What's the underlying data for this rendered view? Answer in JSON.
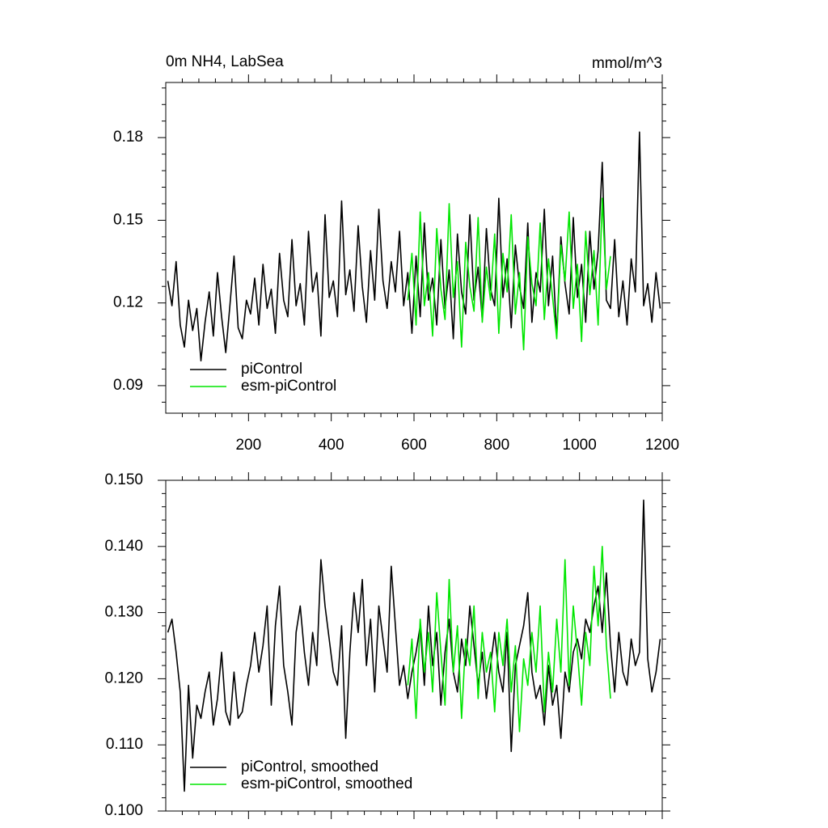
{
  "chart_data": [
    {
      "type": "line",
      "title": "0m NH4, LabSea",
      "right_title": "mmol/m^3",
      "xlim": [
        0,
        1200
      ],
      "xticks": [
        200,
        400,
        600,
        800,
        1000,
        1200
      ],
      "ylim": [
        0.08,
        0.2
      ],
      "yticks": [
        0.09,
        0.12,
        0.15,
        0.18
      ],
      "legend": "lower left",
      "series": [
        {
          "name": "piControl",
          "color": "#000000",
          "x": [
            5,
            15,
            25,
            35,
            45,
            55,
            65,
            75,
            85,
            95,
            105,
            115,
            125,
            135,
            145,
            155,
            165,
            175,
            185,
            195,
            205,
            215,
            225,
            235,
            245,
            255,
            265,
            275,
            285,
            295,
            305,
            315,
            325,
            335,
            345,
            355,
            365,
            375,
            385,
            395,
            405,
            415,
            425,
            435,
            445,
            455,
            465,
            475,
            485,
            495,
            505,
            515,
            525,
            535,
            545,
            555,
            565,
            575,
            585,
            595,
            605,
            615,
            625,
            635,
            645,
            655,
            665,
            675,
            685,
            695,
            705,
            715,
            725,
            735,
            745,
            755,
            765,
            775,
            785,
            795,
            805,
            815,
            825,
            835,
            845,
            855,
            865,
            875,
            885,
            895,
            905,
            915,
            925,
            935,
            945,
            955,
            965,
            975,
            985,
            995,
            1005,
            1015,
            1025,
            1035,
            1045,
            1055,
            1065,
            1075,
            1085,
            1095,
            1105,
            1115,
            1125,
            1135,
            1145,
            1155,
            1165,
            1175,
            1185,
            1195
          ],
          "values": [
            0.128,
            0.119,
            0.135,
            0.112,
            0.104,
            0.121,
            0.11,
            0.118,
            0.099,
            0.113,
            0.124,
            0.108,
            0.131,
            0.115,
            0.102,
            0.119,
            0.137,
            0.111,
            0.107,
            0.121,
            0.116,
            0.129,
            0.112,
            0.134,
            0.118,
            0.125,
            0.109,
            0.138,
            0.121,
            0.115,
            0.143,
            0.119,
            0.127,
            0.112,
            0.146,
            0.124,
            0.131,
            0.108,
            0.152,
            0.122,
            0.128,
            0.115,
            0.157,
            0.123,
            0.132,
            0.117,
            0.148,
            0.126,
            0.113,
            0.139,
            0.121,
            0.154,
            0.128,
            0.118,
            0.135,
            0.124,
            0.146,
            0.119,
            0.131,
            0.109,
            0.137,
            0.115,
            0.149,
            0.121,
            0.129,
            0.112,
            0.143,
            0.118,
            0.132,
            0.107,
            0.145,
            0.124,
            0.116,
            0.152,
            0.121,
            0.133,
            0.114,
            0.147,
            0.125,
            0.119,
            0.158,
            0.122,
            0.136,
            0.111,
            0.141,
            0.126,
            0.118,
            0.149,
            0.113,
            0.131,
            0.124,
            0.154,
            0.119,
            0.137,
            0.108,
            0.144,
            0.127,
            0.116,
            0.151,
            0.122,
            0.134,
            0.113,
            0.146,
            0.125,
            0.139,
            0.171,
            0.121,
            0.118,
            0.143,
            0.115,
            0.128,
            0.112,
            0.136,
            0.124,
            0.182,
            0.119,
            0.127,
            0.113,
            0.131,
            0.118
          ]
        },
        {
          "name": "esm-piControl",
          "color": "#00e600",
          "x": [
            585,
            595,
            605,
            615,
            625,
            635,
            645,
            655,
            665,
            675,
            685,
            695,
            705,
            715,
            725,
            735,
            745,
            755,
            765,
            775,
            785,
            795,
            805,
            815,
            825,
            835,
            845,
            855,
            865,
            875,
            885,
            895,
            905,
            915,
            925,
            935,
            945,
            955,
            965,
            975,
            985,
            995,
            1005,
            1015,
            1025,
            1035,
            1045,
            1055,
            1065,
            1075
          ],
          "values": [
            0.121,
            0.138,
            0.112,
            0.153,
            0.119,
            0.131,
            0.108,
            0.147,
            0.125,
            0.114,
            0.156,
            0.122,
            0.135,
            0.104,
            0.142,
            0.126,
            0.117,
            0.151,
            0.113,
            0.133,
            0.121,
            0.145,
            0.109,
            0.138,
            0.124,
            0.152,
            0.116,
            0.131,
            0.103,
            0.144,
            0.127,
            0.119,
            0.149,
            0.114,
            0.136,
            0.122,
            0.107,
            0.141,
            0.128,
            0.153,
            0.118,
            0.134,
            0.106,
            0.146,
            0.123,
            0.139,
            0.112,
            0.158,
            0.125,
            0.137
          ]
        }
      ]
    },
    {
      "type": "line",
      "xlim": [
        0,
        1200
      ],
      "ylim": [
        0.1,
        0.15
      ],
      "yticks": [
        {
          "value": 0.1,
          "label": "0.100"
        },
        {
          "value": 0.11,
          "label": "0.110"
        },
        {
          "value": 0.12,
          "label": "0.120"
        },
        {
          "value": 0.13,
          "label": "0.130"
        },
        {
          "value": 0.14,
          "label": "0.140"
        },
        {
          "value": 0.15,
          "label": "0.150"
        }
      ],
      "legend": "lower left",
      "series": [
        {
          "name": "piControl, smoothed",
          "color": "#000000",
          "x": [
            5,
            15,
            25,
            35,
            45,
            55,
            65,
            75,
            85,
            95,
            105,
            115,
            125,
            135,
            145,
            155,
            165,
            175,
            185,
            195,
            205,
            215,
            225,
            235,
            245,
            255,
            265,
            275,
            285,
            295,
            305,
            315,
            325,
            335,
            345,
            355,
            365,
            375,
            385,
            395,
            405,
            415,
            425,
            435,
            445,
            455,
            465,
            475,
            485,
            495,
            505,
            515,
            525,
            535,
            545,
            555,
            565,
            575,
            585,
            595,
            605,
            615,
            625,
            635,
            645,
            655,
            665,
            675,
            685,
            695,
            705,
            715,
            725,
            735,
            745,
            755,
            765,
            775,
            785,
            795,
            805,
            815,
            825,
            835,
            845,
            855,
            865,
            875,
            885,
            895,
            905,
            915,
            925,
            935,
            945,
            955,
            965,
            975,
            985,
            995,
            1005,
            1015,
            1025,
            1035,
            1045,
            1055,
            1065,
            1075,
            1085,
            1095,
            1105,
            1115,
            1125,
            1135,
            1145,
            1155,
            1165,
            1175,
            1185,
            1195
          ],
          "values": [
            0.127,
            0.129,
            0.124,
            0.118,
            0.103,
            0.119,
            0.108,
            0.116,
            0.114,
            0.118,
            0.121,
            0.113,
            0.117,
            0.124,
            0.115,
            0.113,
            0.121,
            0.114,
            0.115,
            0.119,
            0.122,
            0.127,
            0.121,
            0.125,
            0.131,
            0.116,
            0.128,
            0.134,
            0.122,
            0.118,
            0.113,
            0.127,
            0.131,
            0.124,
            0.119,
            0.127,
            0.122,
            0.138,
            0.131,
            0.126,
            0.121,
            0.119,
            0.128,
            0.111,
            0.124,
            0.133,
            0.127,
            0.135,
            0.122,
            0.129,
            0.118,
            0.131,
            0.126,
            0.121,
            0.137,
            0.128,
            0.119,
            0.122,
            0.117,
            0.121,
            0.124,
            0.128,
            0.119,
            0.131,
            0.122,
            0.127,
            0.116,
            0.124,
            0.129,
            0.121,
            0.118,
            0.126,
            0.122,
            0.131,
            0.125,
            0.119,
            0.124,
            0.117,
            0.122,
            0.127,
            0.121,
            0.118,
            0.127,
            0.109,
            0.122,
            0.125,
            0.128,
            0.133,
            0.121,
            0.117,
            0.119,
            0.113,
            0.122,
            0.116,
            0.119,
            0.111,
            0.121,
            0.118,
            0.124,
            0.126,
            0.123,
            0.129,
            0.127,
            0.131,
            0.134,
            0.127,
            0.136,
            0.125,
            0.118,
            0.127,
            0.121,
            0.119,
            0.126,
            0.122,
            0.124,
            0.147,
            0.123,
            0.118,
            0.121,
            0.126
          ]
        },
        {
          "name": "esm-piControl, smoothed",
          "color": "#00e600",
          "x": [
            585,
            595,
            605,
            615,
            625,
            635,
            645,
            655,
            665,
            675,
            685,
            695,
            705,
            715,
            725,
            735,
            745,
            755,
            765,
            775,
            785,
            795,
            805,
            815,
            825,
            835,
            845,
            855,
            865,
            875,
            885,
            895,
            905,
            915,
            925,
            935,
            945,
            955,
            965,
            975,
            985,
            995,
            1005,
            1015,
            1025,
            1035,
            1045,
            1055,
            1065,
            1075
          ],
          "values": [
            0.119,
            0.126,
            0.114,
            0.129,
            0.121,
            0.127,
            0.118,
            0.133,
            0.124,
            0.116,
            0.135,
            0.121,
            0.128,
            0.114,
            0.126,
            0.122,
            0.131,
            0.117,
            0.127,
            0.121,
            0.124,
            0.115,
            0.127,
            0.122,
            0.129,
            0.118,
            0.125,
            0.112,
            0.123,
            0.119,
            0.127,
            0.121,
            0.131,
            0.115,
            0.124,
            0.118,
            0.129,
            0.121,
            0.138,
            0.119,
            0.131,
            0.124,
            0.116,
            0.127,
            0.122,
            0.137,
            0.128,
            0.14,
            0.125,
            0.117
          ]
        }
      ]
    }
  ]
}
